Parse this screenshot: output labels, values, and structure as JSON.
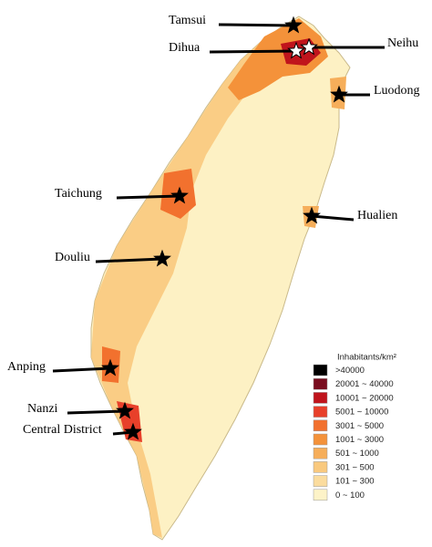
{
  "places": [
    {
      "label": "Tamsui"
    },
    {
      "label": "Dihua"
    },
    {
      "label": "Neihu"
    },
    {
      "label": "Luodong"
    },
    {
      "label": "Taichung"
    },
    {
      "label": "Hualien"
    },
    {
      "label": "Douliu"
    },
    {
      "label": "Anping"
    },
    {
      "label": "Nanzi"
    },
    {
      "label": "Central District"
    }
  ],
  "legend": {
    "title": "Inhabitants/km²",
    "items": [
      {
        "label": ">40000",
        "color": "#000000"
      },
      {
        "label": "20001 ~ 40000",
        "color": "#7a0c1e"
      },
      {
        "label": "10001 ~ 20000",
        "color": "#c0141c"
      },
      {
        "label": "5001 ~ 10000",
        "color": "#e8402a"
      },
      {
        "label": "3001 ~ 5000",
        "color": "#f2712e"
      },
      {
        "label": "1001 ~ 3000",
        "color": "#f4923a"
      },
      {
        "label": "501 ~ 1000",
        "color": "#f6ae5a"
      },
      {
        "label": "301 ~ 500",
        "color": "#f9c97e"
      },
      {
        "label": "101 ~ 300",
        "color": "#fbdc9e"
      },
      {
        "label": "0 ~ 100",
        "color": "#fdf3c8"
      }
    ]
  }
}
